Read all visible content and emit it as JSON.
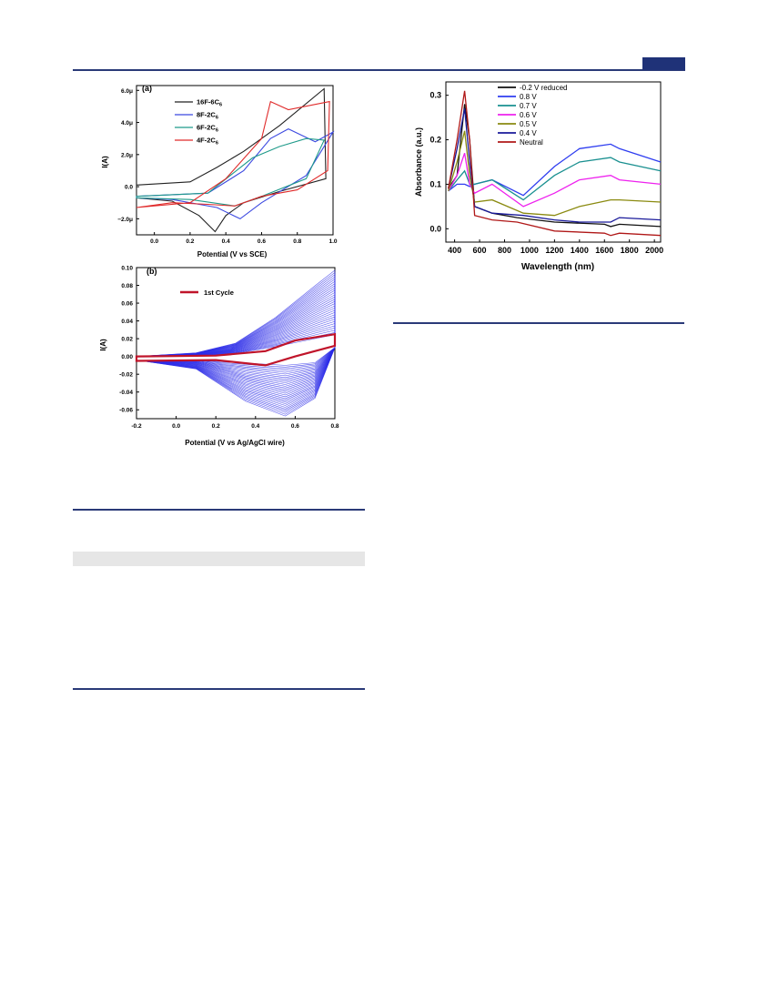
{
  "colors": {
    "rule": "#2a3a78",
    "tab": "#1f3278",
    "graybar": "#e6e6e6"
  },
  "figure_a": {
    "panel_label": "(a)",
    "xlabel": "Potential (V vs SCE)",
    "ylabel": "I(A)",
    "xticks": [
      "0.0",
      "0.2",
      "0.4",
      "0.6",
      "0.8",
      "1.0"
    ],
    "yticks": [
      "6.0μ",
      "4.0μ",
      "2.0μ",
      "0.0",
      "−2.0μ"
    ],
    "legend": [
      {
        "base": "16F-6C",
        "sub": "6",
        "color": "#222222"
      },
      {
        "base": "8F-2C",
        "sub": "6",
        "color": "#3b48e0"
      },
      {
        "base": "6F-2C",
        "sub": "6",
        "color": "#1f9a8a"
      },
      {
        "base": "4F-2C",
        "sub": "6",
        "color": "#e02a2a"
      }
    ]
  },
  "figure_b": {
    "panel_label": "(b)",
    "xlabel": "Potential (V vs Ag/AgCl wire)",
    "ylabel": "I(A)",
    "xticks": [
      "-0.2",
      "0.0",
      "0.2",
      "0.4",
      "0.6",
      "0.8"
    ],
    "yticks": [
      "0.10",
      "0.08",
      "0.06",
      "0.04",
      "0.02",
      "0.00",
      "-0.02",
      "-0.04",
      "-0.06"
    ],
    "legend": "1st Cycle",
    "legend_color": "#c0142a",
    "cycle_color": "#2b2be8"
  },
  "figure_c": {
    "xlabel": "Wavelength (nm)",
    "ylabel": "Absorbance (a.u.)",
    "xticks": [
      "400",
      "600",
      "800",
      "1000",
      "1200",
      "1400",
      "1600",
      "1800",
      "2000"
    ],
    "yticks": [
      "0.3",
      "0.2",
      "0.1",
      "0.0"
    ],
    "legend": [
      {
        "label": "-0.2 V reduced",
        "color": "#111111"
      },
      {
        "label": "0.8 V",
        "color": "#2f3ef0"
      },
      {
        "label": "0.7 V",
        "color": "#1a9090"
      },
      {
        "label": "0.6 V",
        "color": "#ee22ee"
      },
      {
        "label": "0.5 V",
        "color": "#8a8a10"
      },
      {
        "label": "0.4 V",
        "color": "#1a1a9a"
      },
      {
        "label": "Neutral",
        "color": "#b01818"
      }
    ]
  },
  "chart_data": [
    {
      "type": "line",
      "title": "",
      "xlabel": "Potential (V vs SCE)",
      "ylabel": "I(A)",
      "xlim": [
        -0.1,
        1.0
      ],
      "ylim": [
        -3e-06,
        6.3e-06
      ],
      "series": [
        {
          "name": "16F-6C6",
          "x": [
            -0.1,
            0.2,
            0.35,
            0.5,
            0.7,
            0.95,
            0.96,
            0.7,
            0.5,
            0.4,
            0.34,
            0.25,
            0.1,
            -0.1
          ],
          "y": [
            1e-07,
            3e-07,
            1.2e-06,
            2.2e-06,
            3.8e-06,
            6.1e-06,
            5e-07,
            -3e-07,
            -1e-06,
            -1.8e-06,
            -2.8e-06,
            -1.8e-06,
            -9e-07,
            -7e-07
          ]
        },
        {
          "name": "8F-2C6",
          "x": [
            -0.1,
            0.3,
            0.5,
            0.65,
            0.75,
            0.9,
            1.0,
            0.85,
            0.6,
            0.48,
            0.35,
            0.1,
            -0.1
          ],
          "y": [
            -6e-07,
            -4e-07,
            1e-06,
            3e-06,
            3.6e-06,
            2.8e-06,
            3.4e-06,
            7e-07,
            -1e-06,
            -2e-06,
            -1.3e-06,
            -8e-07,
            -7e-07
          ]
        },
        {
          "name": "6F-2C6",
          "x": [
            -0.1,
            0.3,
            0.55,
            0.7,
            0.85,
            0.95,
            0.85,
            0.6,
            0.45,
            0.2,
            -0.1
          ],
          "y": [
            -6e-07,
            -4e-07,
            1.8e-06,
            2.5e-06,
            3e-06,
            2.9e-06,
            5e-07,
            -6e-07,
            -1.2e-06,
            -8e-07,
            -7e-07
          ]
        },
        {
          "name": "4F-2C6",
          "x": [
            -0.1,
            0.2,
            0.4,
            0.6,
            0.65,
            0.75,
            0.98,
            0.97,
            0.8,
            0.6,
            0.45,
            0.3,
            0.1,
            -0.1
          ],
          "y": [
            -1.3e-06,
            -1e-06,
            5e-07,
            3e-06,
            5.3e-06,
            4.8e-06,
            5.3e-06,
            1e-06,
            -2e-07,
            -6e-07,
            -1.2e-06,
            -1.1e-06,
            -1e-06,
            -1.3e-06
          ]
        }
      ]
    },
    {
      "type": "line",
      "title": "",
      "xlabel": "Potential (V vs Ag/AgCl wire)",
      "ylabel": "I(A)",
      "xlim": [
        -0.2,
        0.8
      ],
      "ylim": [
        -0.07,
        0.1
      ],
      "series": [
        {
          "name": "1st Cycle",
          "x": [
            -0.2,
            0.2,
            0.45,
            0.6,
            0.8,
            0.8,
            0.6,
            0.45,
            0.2,
            -0.2
          ],
          "y": [
            0.0,
            0.001,
            0.006,
            0.018,
            0.025,
            0.012,
            0.0,
            -0.01,
            -0.004,
            -0.005
          ]
        }
      ],
      "cycles_envelope": {
        "max_anodic": 0.097,
        "min_cathodic": -0.067,
        "count": 30
      }
    },
    {
      "type": "line",
      "title": "",
      "xlabel": "Wavelength (nm)",
      "ylabel": "Absorbance (a.u.)",
      "xlim": [
        330,
        2050
      ],
      "ylim": [
        -0.03,
        0.33
      ],
      "series": [
        {
          "name": "-0.2 V reduced",
          "x": [
            350,
            420,
            480,
            520,
            560,
            700,
            900,
            1200,
            1600,
            1650,
            1720,
            2050
          ],
          "y": [
            0.09,
            0.12,
            0.28,
            0.2,
            0.05,
            0.035,
            0.025,
            0.015,
            0.01,
            0.005,
            0.01,
            0.005
          ]
        },
        {
          "name": "0.8 V",
          "x": [
            350,
            420,
            480,
            520,
            560,
            700,
            950,
            1200,
            1400,
            1650,
            1720,
            2050
          ],
          "y": [
            0.085,
            0.1,
            0.1,
            0.095,
            0.1,
            0.11,
            0.075,
            0.14,
            0.18,
            0.19,
            0.18,
            0.15
          ]
        },
        {
          "name": "0.7 V",
          "x": [
            350,
            420,
            480,
            520,
            560,
            700,
            950,
            1200,
            1400,
            1650,
            1720,
            2050
          ],
          "y": [
            0.085,
            0.11,
            0.13,
            0.1,
            0.1,
            0.11,
            0.065,
            0.12,
            0.15,
            0.16,
            0.15,
            0.13
          ]
        },
        {
          "name": "0.6 V",
          "x": [
            350,
            420,
            480,
            520,
            560,
            700,
            950,
            1200,
            1400,
            1650,
            1720,
            2050
          ],
          "y": [
            0.085,
            0.12,
            0.17,
            0.1,
            0.08,
            0.1,
            0.05,
            0.08,
            0.11,
            0.12,
            0.11,
            0.1
          ]
        },
        {
          "name": "0.5 V",
          "x": [
            350,
            420,
            480,
            520,
            560,
            700,
            950,
            1200,
            1400,
            1650,
            1720,
            2050
          ],
          "y": [
            0.085,
            0.15,
            0.22,
            0.12,
            0.06,
            0.065,
            0.035,
            0.03,
            0.05,
            0.065,
            0.065,
            0.06
          ]
        },
        {
          "name": "0.4 V",
          "x": [
            350,
            420,
            480,
            520,
            560,
            700,
            950,
            1200,
            1400,
            1650,
            1720,
            2050
          ],
          "y": [
            0.09,
            0.18,
            0.27,
            0.15,
            0.05,
            0.035,
            0.03,
            0.02,
            0.015,
            0.015,
            0.025,
            0.02
          ]
        },
        {
          "name": "Neutral",
          "x": [
            350,
            420,
            480,
            520,
            560,
            700,
            900,
            1200,
            1600,
            1650,
            1720,
            2050
          ],
          "y": [
            0.09,
            0.2,
            0.31,
            0.2,
            0.03,
            0.02,
            0.015,
            -0.005,
            -0.01,
            -0.015,
            -0.01,
            -0.015
          ]
        }
      ]
    }
  ]
}
